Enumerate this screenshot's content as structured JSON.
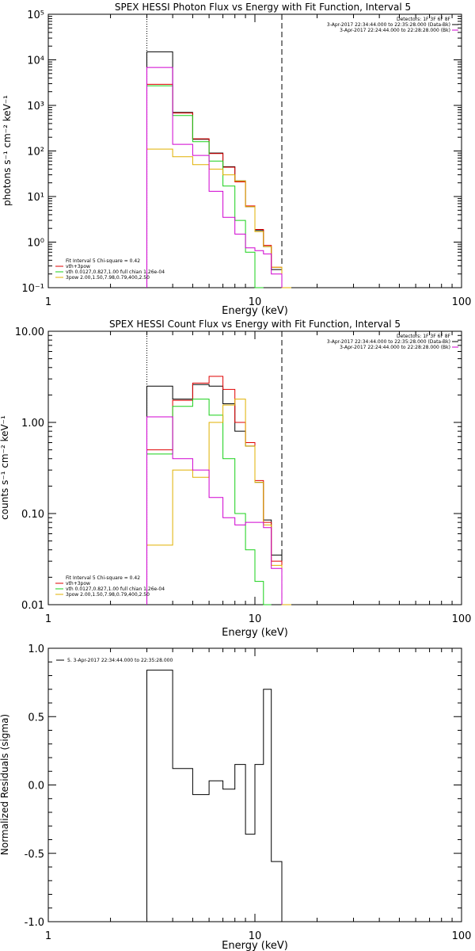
{
  "colors": {
    "black": "#000000",
    "red": "#e00000",
    "green": "#18d018",
    "magenta": "#d000d0",
    "yellow": "#e0b000"
  },
  "chart_data": [
    {
      "type": "line",
      "title": "SPEX HESSI Photon Flux vs Energy with Fit Function, Interval 5",
      "xlabel": "Energy (keV)",
      "ylabel": "photons s⁻¹ cm⁻² keV⁻¹",
      "xscale": "log",
      "yscale": "log",
      "xlim": [
        1,
        100
      ],
      "ylim": [
        0.1,
        100000
      ],
      "xtick_labels": [
        "1",
        "10",
        "100"
      ],
      "ytick_labels": [
        "10⁻¹",
        "10⁰",
        "10¹",
        "10²",
        "10³",
        "10⁴",
        "10⁵"
      ],
      "vlines": [
        {
          "x": 3.0,
          "style": "dotted"
        },
        {
          "x": 13.5,
          "style": "dashed"
        }
      ],
      "legend_topright": [
        {
          "text": "Detectors: 1F 3F 6F 8F",
          "color": "#000000"
        },
        {
          "text": "3-Apr-2017 22:34:44.000 to 22:35:28.000 (Data-Bk)",
          "color": "#000000"
        },
        {
          "text": "3-Apr-2017 22:24:44.000 to 22:28:28.000 (Bk)",
          "color": "#d000d0"
        }
      ],
      "legend_bottomleft": [
        {
          "text": "Fit Interval 5   Chi-square = 0.42",
          "color": "#000000"
        },
        {
          "text": "vth+3pow",
          "color": "#e00000"
        },
        {
          "text": "vth 0.0127,0.827,1.00  full chian 1.26e-04",
          "color": "#18d018"
        },
        {
          "text": "3pow 2.00,1.50,7.98,0.79,400,2.50",
          "color": "#e0b000"
        }
      ],
      "bin_edges": [
        3.0,
        4.0,
        5.0,
        6.0,
        7.0,
        8.0,
        9.0,
        10.0,
        11.0,
        12.0,
        13.5,
        15.0
      ],
      "series": [
        {
          "name": "Data-Bk",
          "color": "#000000",
          "values": [
            15000,
            700,
            180,
            90,
            45,
            22,
            6,
            1.8,
            0.8,
            0.25,
            null
          ]
        },
        {
          "name": "vth+3pow",
          "color": "#e00000",
          "values": [
            2900,
            680,
            185,
            88,
            44,
            21,
            6.2,
            1.9,
            0.85,
            0.28,
            null
          ]
        },
        {
          "name": "vth",
          "color": "#18d018",
          "values": [
            2700,
            600,
            160,
            60,
            17,
            3.0,
            0.6,
            0.1,
            null,
            null,
            null
          ]
        },
        {
          "name": "3pow",
          "color": "#e0b000",
          "values": [
            110,
            75,
            50,
            40,
            30,
            22,
            6.0,
            1.7,
            0.8,
            0.28,
            0.1
          ]
        },
        {
          "name": "Bk",
          "color": "#d000d0",
          "values": [
            6800,
            140,
            80,
            13,
            3.5,
            1.5,
            0.75,
            0.65,
            0.55,
            0.2,
            null
          ]
        }
      ]
    },
    {
      "type": "line",
      "title": "SPEX HESSI Count Flux vs Energy with Fit Function, Interval 5",
      "xlabel": "Energy (keV)",
      "ylabel": "counts s⁻¹ cm⁻² keV⁻¹",
      "xscale": "log",
      "yscale": "log",
      "xlim": [
        1,
        100
      ],
      "ylim": [
        0.01,
        10
      ],
      "xtick_labels": [
        "1",
        "10",
        "100"
      ],
      "ytick_labels": [
        "0.01",
        "0.10",
        "1.00",
        "10.00"
      ],
      "vlines": [
        {
          "x": 3.0,
          "style": "dotted"
        },
        {
          "x": 13.5,
          "style": "dashed"
        }
      ],
      "legend_topright": [
        {
          "text": "Detectors: 1F 3F 6F 8F",
          "color": "#000000"
        },
        {
          "text": "3-Apr-2017 22:34:44.000 to 22:35:28.000 (Data-Bk)",
          "color": "#000000"
        },
        {
          "text": "3-Apr-2017 22:24:44.000 to 22:28:28.000 (Bk)",
          "color": "#d000d0"
        }
      ],
      "legend_bottomleft": [
        {
          "text": "Fit Interval 5   Chi-square = 0.42",
          "color": "#000000"
        },
        {
          "text": "vth+3pow",
          "color": "#e00000"
        },
        {
          "text": "vth 0.0127,0.827,1.00  full chian 1.26e-04",
          "color": "#18d018"
        },
        {
          "text": "3pow 2.00,1.50,7.98,0.79,400,2.50",
          "color": "#e0b000"
        }
      ],
      "bin_edges": [
        3.0,
        4.0,
        5.0,
        6.0,
        7.0,
        8.0,
        9.0,
        10.0,
        11.0,
        12.0,
        13.5,
        15.0
      ],
      "series": [
        {
          "name": "Data-Bk",
          "color": "#000000",
          "values": [
            2.5,
            1.8,
            2.6,
            2.5,
            1.6,
            0.8,
            0.55,
            0.22,
            0.085,
            0.035,
            null
          ]
        },
        {
          "name": "vth+3pow",
          "color": "#e00000",
          "values": [
            0.5,
            1.75,
            2.7,
            3.2,
            2.3,
            1.0,
            0.6,
            0.23,
            0.08,
            0.03,
            null
          ]
        },
        {
          "name": "vth",
          "color": "#18d018",
          "values": [
            0.45,
            1.5,
            1.8,
            1.2,
            0.4,
            0.1,
            0.04,
            0.018,
            0.009,
            null,
            null
          ]
        },
        {
          "name": "3pow",
          "color": "#e0b000",
          "values": [
            0.045,
            0.3,
            0.25,
            1.0,
            1.55,
            1.8,
            0.55,
            0.22,
            0.075,
            0.027,
            0.01
          ]
        },
        {
          "name": "Bk",
          "color": "#d000d0",
          "values": [
            1.15,
            0.4,
            0.3,
            0.15,
            0.09,
            0.075,
            0.08,
            0.08,
            0.07,
            0.025,
            null
          ]
        }
      ]
    },
    {
      "type": "line",
      "title": "",
      "xlabel": "Energy (keV)",
      "ylabel": "Normalized Residuals (sigma)",
      "xscale": "log",
      "yscale": "linear",
      "xlim": [
        1,
        100
      ],
      "ylim": [
        -1.0,
        1.0
      ],
      "xtick_labels": [
        "1",
        "10",
        "100"
      ],
      "ytick_labels": [
        "-1.0",
        "-0.5",
        "0.0",
        "0.5",
        "1.0"
      ],
      "legend_topleft": [
        {
          "text": "5. 3-Apr-2017 22:34:44.000 to 22:35:28.000",
          "color": "#000000"
        }
      ],
      "bin_edges": [
        3.0,
        4.0,
        5.0,
        6.0,
        7.0,
        8.0,
        9.0,
        10.0,
        11.0,
        12.0,
        13.5
      ],
      "series": [
        {
          "name": "",
          "color": "#000000",
          "values": [
            0.84,
            0.12,
            -0.07,
            0.03,
            -0.03,
            0.15,
            -0.36,
            0.15,
            0.7,
            -0.56
          ]
        }
      ]
    }
  ]
}
